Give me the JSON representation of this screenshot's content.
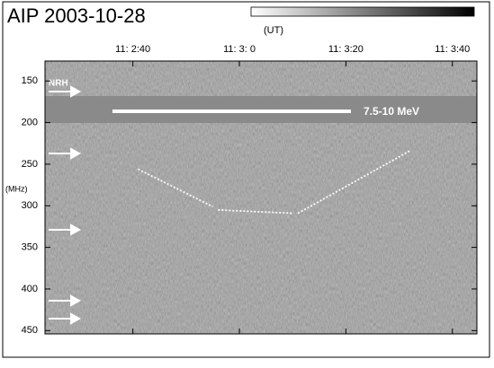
{
  "chart_data": {
    "type": "spectrogram",
    "title": "AIP 2003-10-28",
    "x_label": "(UT)",
    "y_label": "(MHz)",
    "xlim": [
      143.5,
      224.6
    ],
    "xticks": [
      {
        "value": 160,
        "label": "11: 2:40"
      },
      {
        "value": 180,
        "label": "11: 3: 0"
      },
      {
        "value": 200,
        "label": "11: 3:20"
      },
      {
        "value": 220,
        "label": "11: 3:40"
      }
    ],
    "ylim": [
      126,
      454
    ],
    "yticks": [
      150,
      200,
      250,
      300,
      350,
      400,
      450
    ],
    "y_reversed": true,
    "annotations": {
      "instrument": "NRH",
      "band": "7.5-10 MeV"
    },
    "series": [
      {
        "color": "#ffffff",
        "x": [
          161,
          175,
          null,
          176,
          190,
          null,
          191,
          212
        ],
        "values": [
          256,
          301,
          null,
          305,
          309,
          null,
          309,
          234
        ]
      }
    ]
  }
}
